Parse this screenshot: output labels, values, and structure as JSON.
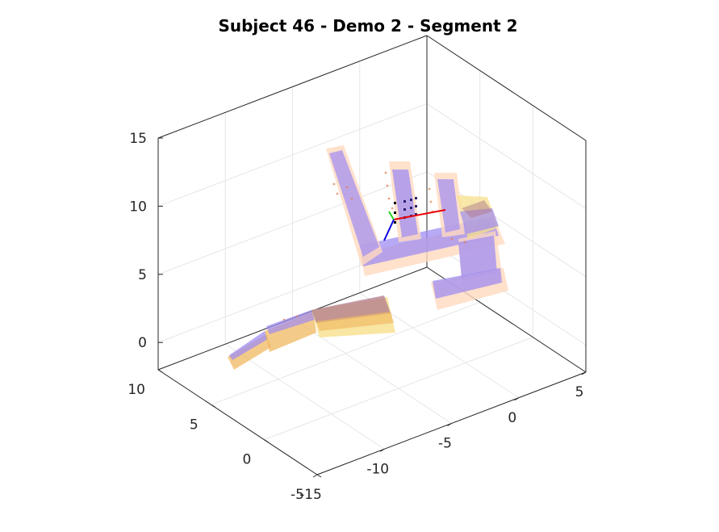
{
  "chart_data": {
    "type": "scatter",
    "title": "Subject 46 - Demo 2 - Segment 2",
    "xlabel": "",
    "ylabel": "",
    "zlabel": "",
    "grid": true,
    "xlim": [
      -15,
      5
    ],
    "ylim": [
      -5,
      10
    ],
    "zlim": [
      -2,
      15
    ],
    "x_ticks": [
      "-15",
      "-10",
      "-5",
      "0",
      "5"
    ],
    "y_ticks": [
      "-5",
      "0",
      "5",
      "10"
    ],
    "z_ticks": [
      "0",
      "5",
      "10",
      "15"
    ],
    "segment_colors": {
      "purple": "#9f8cf2",
      "peach": "#ffd9bf",
      "orange": "#f0b860",
      "yellow": "#f7e08c",
      "mauve": "#b07a8c"
    },
    "frame_axis_colors": [
      "#e8000b",
      "#1fd620",
      "#0a00e0"
    ]
  }
}
